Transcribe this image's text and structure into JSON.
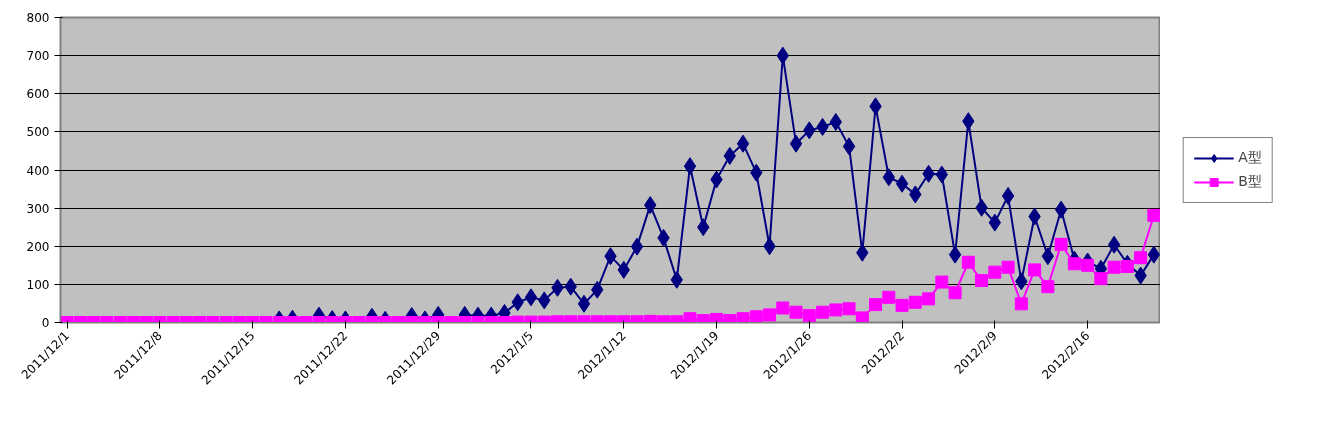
{
  "chart_data": {
    "type": "line",
    "x": [
      "2011-12-01",
      "2011-12-02",
      "2011-12-03",
      "2011-12-04",
      "2011-12-05",
      "2011-12-06",
      "2011-12-07",
      "2011-12-08",
      "2011-12-09",
      "2011-12-10",
      "2011-12-11",
      "2011-12-12",
      "2011-12-13",
      "2011-12-14",
      "2011-12-15",
      "2011-12-16",
      "2011-12-17",
      "2011-12-18",
      "2011-12-19",
      "2011-12-20",
      "2011-12-21",
      "2011-12-22",
      "2011-12-23",
      "2011-12-24",
      "2011-12-25",
      "2011-12-26",
      "2011-12-27",
      "2011-12-28",
      "2011-12-29",
      "2011-12-30",
      "2011-12-31",
      "2012-01-01",
      "2012-01-02",
      "2012-01-03",
      "2012-01-04",
      "2012-01-05",
      "2012-01-06",
      "2012-01-07",
      "2012-01-08",
      "2012-01-09",
      "2012-01-10",
      "2012-01-11",
      "2012-01-12",
      "2012-01-13",
      "2012-01-14",
      "2012-01-15",
      "2012-01-16",
      "2012-01-17",
      "2012-01-18",
      "2012-01-19",
      "2012-01-20",
      "2012-01-21",
      "2012-01-22",
      "2012-01-23",
      "2012-01-24",
      "2012-01-25",
      "2012-01-26",
      "2012-01-27",
      "2012-01-28",
      "2012-01-29",
      "2012-01-30",
      "2012-01-31",
      "2012-02-01",
      "2012-02-02",
      "2012-02-03",
      "2012-02-04",
      "2012-02-05",
      "2012-02-06",
      "2012-02-07",
      "2012-02-08",
      "2012-02-09",
      "2012-02-10",
      "2012-02-11",
      "2012-02-12",
      "2012-02-13",
      "2012-02-14",
      "2012-02-15",
      "2012-02-16",
      "2012-02-17",
      "2012-02-18",
      "2012-02-19",
      "2012-02-20",
      "2012-02-21"
    ],
    "series": [
      {
        "name": "A型",
        "color": "#000080",
        "marker": "diamond",
        "values": [
          null,
          null,
          null,
          null,
          null,
          null,
          null,
          null,
          null,
          null,
          null,
          null,
          null,
          null,
          null,
          null,
          8,
          10,
          null,
          18,
          9,
          8,
          null,
          15,
          7,
          null,
          17,
          8,
          20,
          null,
          20,
          18,
          18,
          25,
          53,
          66,
          58,
          91,
          94,
          49,
          86,
          174,
          138,
          199,
          308,
          222,
          112,
          410,
          250,
          375,
          437,
          469,
          393,
          200,
          700,
          469,
          504,
          513,
          526,
          462,
          183,
          567,
          381,
          364,
          336,
          390,
          388,
          178,
          528,
          301,
          262,
          332,
          108,
          278,
          174,
          296,
          165,
          160,
          141,
          204,
          154,
          123,
          178
        ]
      },
      {
        "name": "B型",
        "color": "#ff00ff",
        "marker": "square",
        "values": [
          0,
          0,
          0,
          0,
          0,
          0,
          0,
          0,
          0,
          0,
          0,
          0,
          0,
          0,
          0,
          0,
          0,
          0,
          0,
          0,
          0,
          0,
          0,
          0,
          0,
          0,
          0,
          0,
          0,
          0,
          0,
          0,
          0,
          0,
          1,
          1,
          1,
          2,
          2,
          2,
          2,
          2,
          2,
          2,
          3,
          2,
          2,
          10,
          5,
          8,
          5,
          10,
          15,
          20,
          38,
          27,
          18,
          27,
          33,
          36,
          12,
          47,
          66,
          45,
          53,
          62,
          106,
          78,
          158,
          110,
          132,
          145,
          49,
          138,
          94,
          205,
          154,
          150,
          115,
          145,
          147,
          170,
          281
        ]
      }
    ],
    "xlim": [
      "2011-11-30T12:00",
      "2012-02-21T12:00"
    ],
    "xticks": [
      {
        "value": "2011-12-01",
        "label": "2011/12/1"
      },
      {
        "value": "2011-12-08",
        "label": "2011/12/8"
      },
      {
        "value": "2011-12-15",
        "label": "2011/12/15"
      },
      {
        "value": "2011-12-22",
        "label": "2011/12/22"
      },
      {
        "value": "2011-12-29",
        "label": "2011/12/29"
      },
      {
        "value": "2012-01-05",
        "label": "2012/1/5"
      },
      {
        "value": "2012-01-12",
        "label": "2012/1/12"
      },
      {
        "value": "2012-01-19",
        "label": "2012/1/19"
      },
      {
        "value": "2012-01-26",
        "label": "2012/1/26"
      },
      {
        "value": "2012-02-02",
        "label": "2012/2/2"
      },
      {
        "value": "2012-02-09",
        "label": "2012/2/9"
      },
      {
        "value": "2012-02-16",
        "label": "2012/2/16"
      }
    ],
    "ylim": [
      0,
      800
    ],
    "yticks": [
      0,
      100,
      200,
      300,
      400,
      500,
      600,
      700,
      800
    ],
    "grid": "y",
    "legend": "right",
    "line_style": "solid"
  }
}
